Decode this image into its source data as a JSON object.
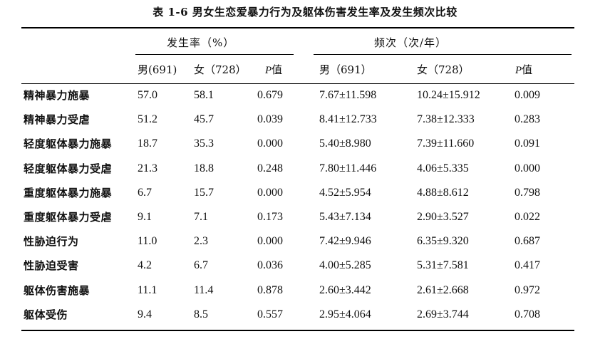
{
  "caption": "表 1-6 男女生恋爱暴力行为及躯体伤害发生率及发生频次比较",
  "header": {
    "group1": "发生率（%）",
    "group2": "频次（次/年）",
    "columns": [
      {
        "key": "rate_m",
        "label": "男(691)"
      },
      {
        "key": "rate_f",
        "label": "女（728）"
      },
      {
        "key": "p1_p",
        "label": "P",
        "suffix": "值"
      },
      {
        "key": "freq_m",
        "label": "男（691）"
      },
      {
        "key": "freq_f",
        "label": "女（728）"
      },
      {
        "key": "p2_p",
        "label": "P",
        "suffix": "值"
      }
    ]
  },
  "rows": [
    {
      "label": "精神暴力施暴",
      "rate_m": "57.0",
      "rate_f": "58.1",
      "p1": "0.679",
      "freq_m": "7.67±11.598",
      "freq_f": "10.24±15.912",
      "p2": "0.009"
    },
    {
      "label": "精神暴力受虐",
      "rate_m": "51.2",
      "rate_f": "45.7",
      "p1": "0.039",
      "freq_m": "8.41±12.733",
      "freq_f": "7.38±12.333",
      "p2": "0.283"
    },
    {
      "label": "轻度躯体暴力施暴",
      "rate_m": "18.7",
      "rate_f": "35.3",
      "p1": "0.000",
      "freq_m": "5.40±8.980",
      "freq_f": "7.39±11.660",
      "p2": "0.091"
    },
    {
      "label": "轻度躯体暴力受虐",
      "rate_m": "21.3",
      "rate_f": "18.8",
      "p1": "0.248",
      "freq_m": "7.80±11.446",
      "freq_f": "4.06±5.335",
      "p2": "0.000"
    },
    {
      "label": "重度躯体暴力施暴",
      "rate_m": "6.7",
      "rate_f": "15.7",
      "p1": "0.000",
      "freq_m": "4.52±5.954",
      "freq_f": "4.88±8.612",
      "p2": "0.798"
    },
    {
      "label": "重度躯体暴力受虐",
      "rate_m": "9.1",
      "rate_f": "7.1",
      "p1": "0.173",
      "freq_m": "5.43±7.134",
      "freq_f": "2.90±3.527",
      "p2": "0.022"
    },
    {
      "label": "性胁迫行为",
      "rate_m": "11.0",
      "rate_f": "2.3",
      "p1": "0.000",
      "freq_m": "7.42±9.946",
      "freq_f": "6.35±9.320",
      "p2": "0.687"
    },
    {
      "label": "性胁迫受害",
      "rate_m": "4.2",
      "rate_f": "6.7",
      "p1": "0.036",
      "freq_m": "4.00±5.285",
      "freq_f": "5.31±7.581",
      "p2": "0.417"
    },
    {
      "label": "躯体伤害施暴",
      "rate_m": "11.1",
      "rate_f": "11.4",
      "p1": "0.878",
      "freq_m": "2.60±3.442",
      "freq_f": "2.61±2.668",
      "p2": "0.972"
    },
    {
      "label": "躯体受伤",
      "rate_m": "9.4",
      "rate_f": "8.5",
      "p1": "0.557",
      "freq_m": "2.95±4.064",
      "freq_f": "2.69±3.744",
      "p2": "0.708"
    }
  ]
}
